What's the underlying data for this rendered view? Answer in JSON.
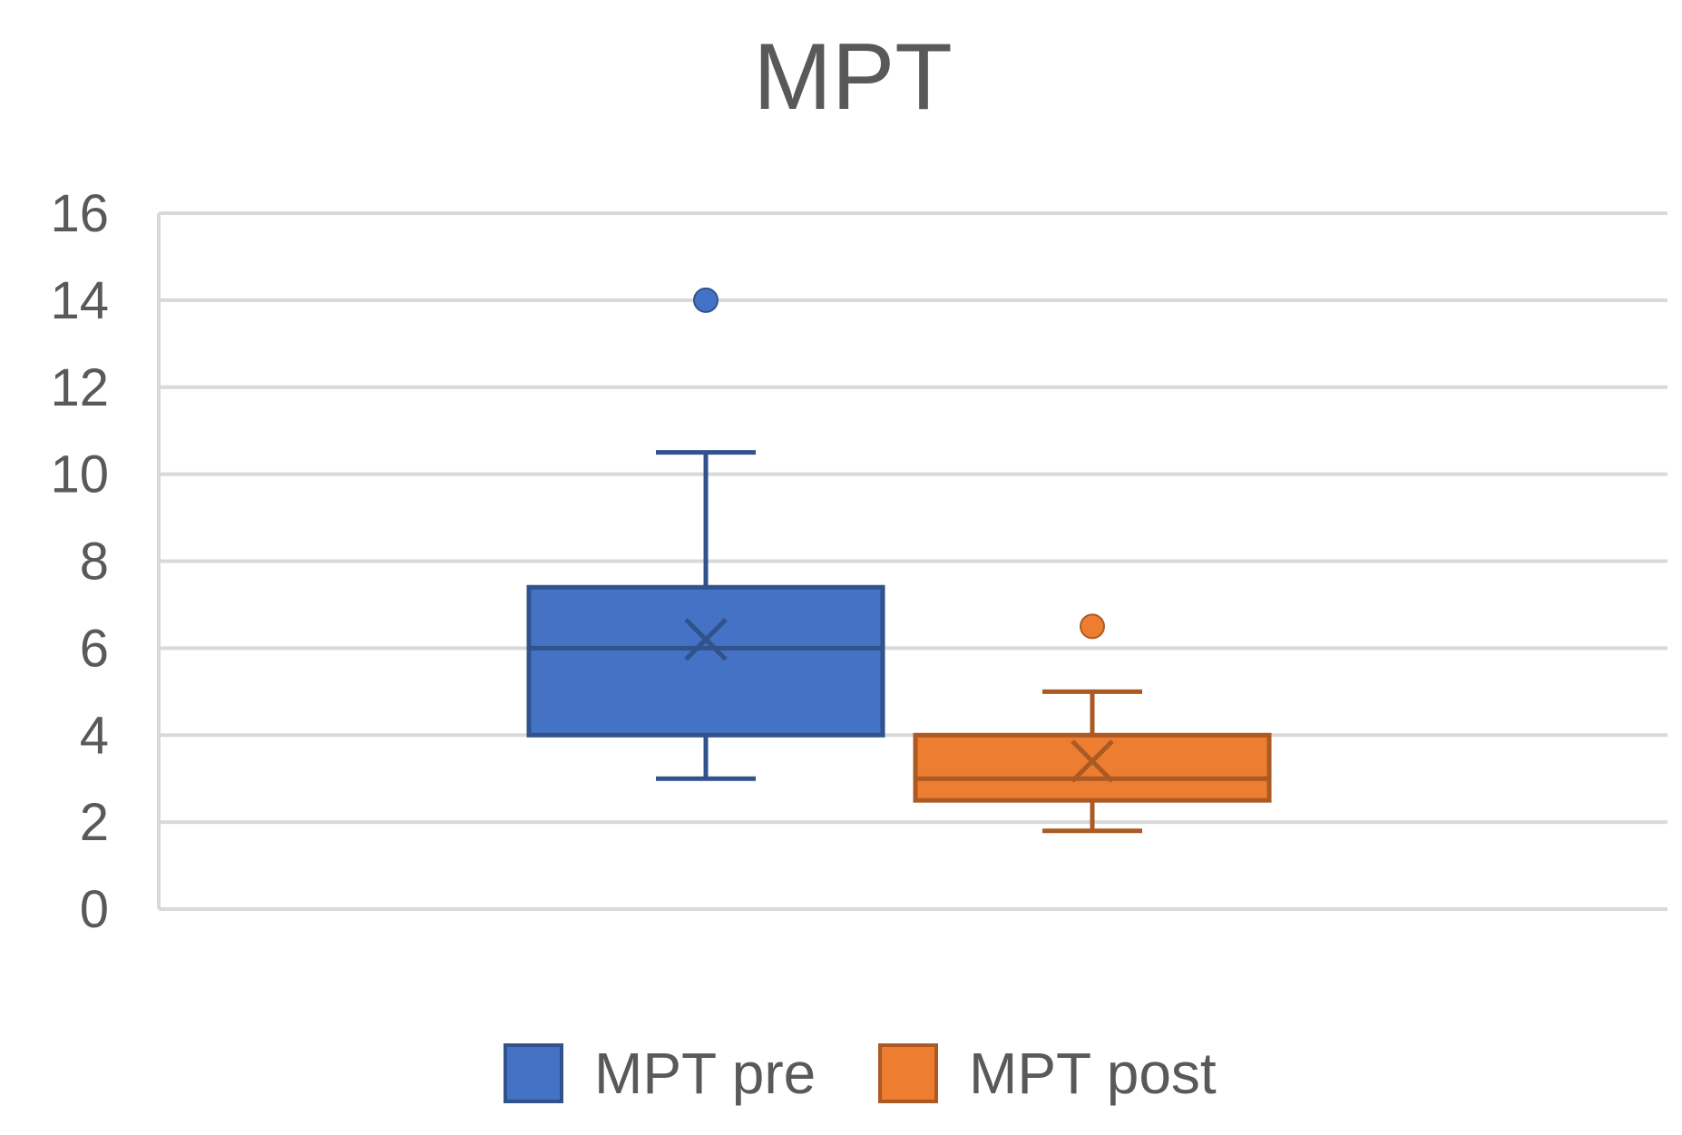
{
  "chart_data": {
    "type": "box",
    "title": "MPT",
    "xlabel": "",
    "ylabel": "",
    "ylim": [
      0,
      16
    ],
    "yticks": [
      "0",
      "2",
      "4",
      "6",
      "8",
      "10",
      "12",
      "14",
      "16"
    ],
    "grid": true,
    "legend_position": "bottom",
    "series": [
      {
        "name": "MPT pre",
        "color": "#4472C4",
        "min": 3,
        "q1": 4,
        "median": 6,
        "q3": 7.4,
        "max": 10.5,
        "mean": 6.2,
        "outliers": [
          14
        ]
      },
      {
        "name": "MPT post",
        "color": "#ED7D31",
        "min": 1.8,
        "q1": 2.5,
        "median": 3,
        "q3": 4,
        "max": 5,
        "mean": 3.4,
        "outliers": [
          6.5
        ]
      }
    ]
  }
}
